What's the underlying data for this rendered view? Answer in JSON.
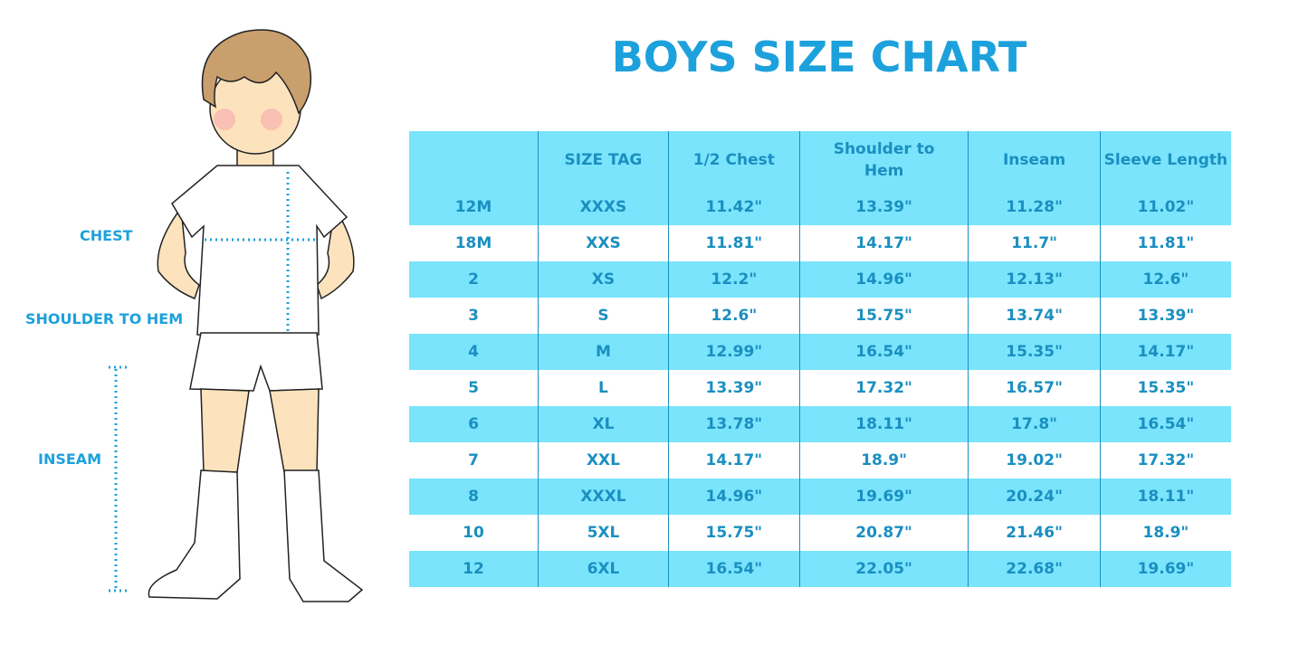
{
  "title": "BOYS SIZE CHART",
  "figure_labels": {
    "chest": "CHEST",
    "shoulder_to_hem": "SHOULDER TO HEM",
    "inseam": "INSEAM"
  },
  "colors": {
    "accent": "#1da1dc",
    "row_highlight": "#7ae4fc",
    "text": "#1a8fc0"
  },
  "chart_data": {
    "type": "table",
    "title": "BOYS SIZE CHART",
    "columns": [
      "",
      "SIZE TAG",
      "1/2 Chest",
      "Shoulder to Hem",
      "Inseam",
      "Sleeve Length"
    ],
    "rows": [
      [
        "12M",
        "XXXS",
        "11.42\"",
        "13.39\"",
        "11.28\"",
        "11.02\""
      ],
      [
        "18M",
        "XXS",
        "11.81\"",
        "14.17\"",
        "11.7\"",
        "11.81\""
      ],
      [
        "2",
        "XS",
        "12.2\"",
        "14.96\"",
        "12.13\"",
        "12.6\""
      ],
      [
        "3",
        "S",
        "12.6\"",
        "15.75\"",
        "13.74\"",
        "13.39\""
      ],
      [
        "4",
        "M",
        "12.99\"",
        "16.54\"",
        "15.35\"",
        "14.17\""
      ],
      [
        "5",
        "L",
        "13.39\"",
        "17.32\"",
        "16.57\"",
        "15.35\""
      ],
      [
        "6",
        "XL",
        "13.78\"",
        "18.11\"",
        "17.8\"",
        "16.54\""
      ],
      [
        "7",
        "XXL",
        "14.17\"",
        "18.9\"",
        "19.02\"",
        "17.32\""
      ],
      [
        "8",
        "XXXL",
        "14.96\"",
        "19.69\"",
        "20.24\"",
        "18.11\""
      ],
      [
        "10",
        "5XL",
        "15.75\"",
        "20.87\"",
        "21.46\"",
        "18.9\""
      ],
      [
        "12",
        "6XL",
        "16.54\"",
        "22.05\"",
        "22.68\"",
        "19.69\""
      ]
    ]
  }
}
